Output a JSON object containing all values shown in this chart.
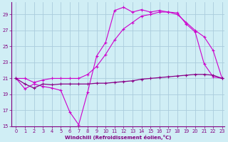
{
  "xlabel": "Windchill (Refroidissement éolien,°C)",
  "bg_color": "#d0eef5",
  "grid_color": "#aaccdd",
  "line_color1": "#cc00cc",
  "line_color2": "#880088",
  "xmin": 0,
  "xmax": 23,
  "ymin": 15,
  "ymax": 30,
  "yticks": [
    15,
    17,
    19,
    21,
    23,
    25,
    27,
    29
  ],
  "xticks": [
    0,
    1,
    2,
    3,
    4,
    5,
    6,
    7,
    8,
    9,
    10,
    11,
    12,
    13,
    14,
    15,
    16,
    17,
    18,
    19,
    20,
    21,
    22,
    23
  ],
  "series1_x": [
    0,
    1,
    2,
    3,
    4,
    5,
    6,
    7,
    8,
    9,
    10,
    11,
    12,
    13,
    14,
    15,
    16,
    17,
    18,
    19,
    20,
    21,
    22,
    23
  ],
  "series1_y": [
    21.0,
    19.7,
    20.3,
    20.0,
    19.8,
    19.5,
    16.8,
    15.2,
    19.3,
    23.8,
    25.5,
    29.5,
    29.9,
    29.3,
    29.6,
    29.3,
    29.5,
    29.3,
    29.2,
    27.8,
    26.8,
    22.8,
    21.2,
    21.0
  ],
  "series2_x": [
    0,
    1,
    2,
    3,
    4,
    5,
    6,
    7,
    8,
    9,
    10,
    11,
    12,
    13,
    14,
    15,
    16,
    17,
    18,
    19,
    20,
    21,
    22,
    23
  ],
  "series2_y": [
    21.0,
    21.0,
    20.5,
    20.8,
    21.0,
    21.0,
    21.0,
    21.0,
    21.5,
    22.5,
    24.0,
    25.8,
    27.2,
    28.0,
    28.8,
    29.0,
    29.3,
    29.3,
    29.0,
    28.0,
    27.0,
    26.2,
    24.5,
    21.0
  ],
  "series3_x": [
    0,
    1,
    2,
    3,
    4,
    5,
    6,
    7,
    8,
    9,
    10,
    11,
    12,
    13,
    14,
    15,
    16,
    17,
    18,
    19,
    20,
    21,
    22,
    23
  ],
  "series3_y": [
    21.0,
    20.3,
    19.8,
    20.3,
    20.2,
    20.3,
    20.3,
    20.3,
    20.3,
    20.4,
    20.4,
    20.5,
    20.6,
    20.7,
    20.9,
    21.0,
    21.1,
    21.2,
    21.3,
    21.4,
    21.5,
    21.5,
    21.4,
    21.0
  ]
}
